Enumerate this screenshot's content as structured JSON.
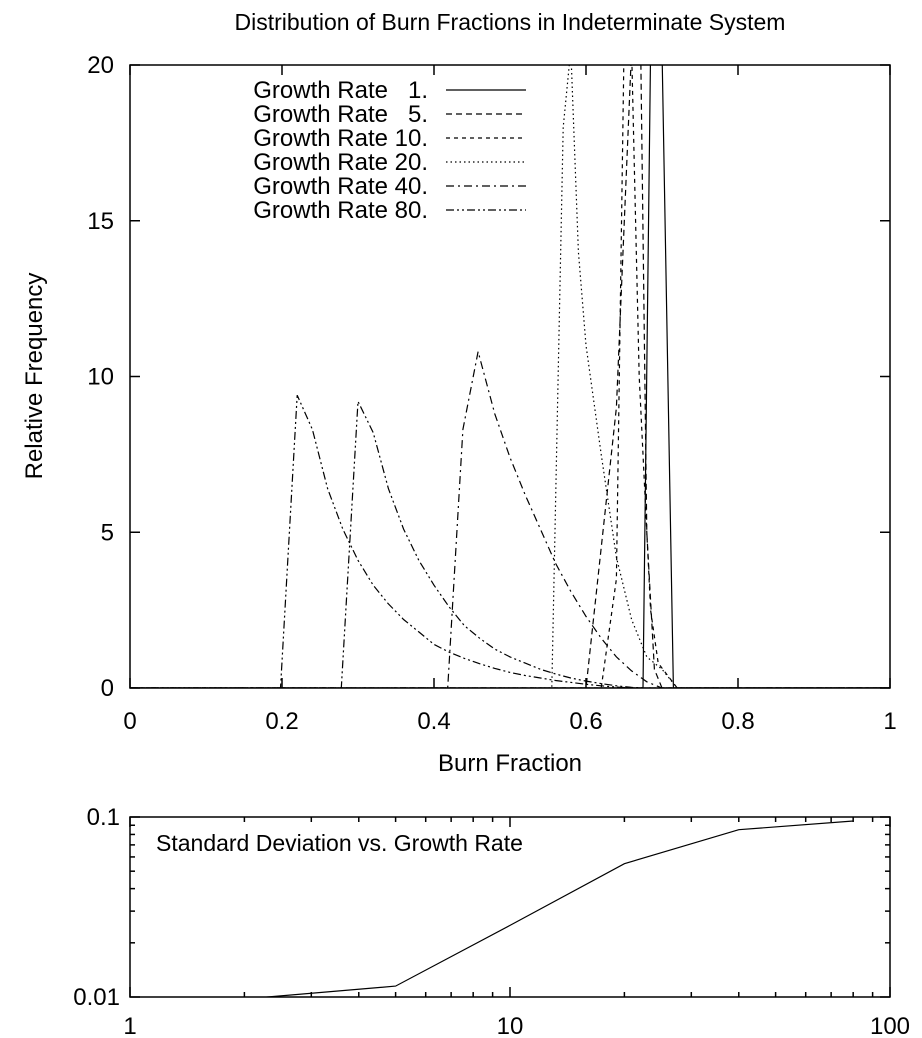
{
  "chart_data": [
    {
      "type": "line",
      "title": "Distribution of Burn Fractions in Indeterminate System",
      "xlabel": "Burn Fraction",
      "ylabel": "Relative Frequency",
      "xlim": [
        0,
        1
      ],
      "ylim": [
        0,
        20
      ],
      "x_ticks": [
        "0",
        "0.2",
        "0.4",
        "0.6",
        "0.8",
        "1"
      ],
      "y_ticks": [
        "0",
        "5",
        "10",
        "15",
        "20"
      ],
      "grid": false,
      "legend_position": "top-left",
      "series": [
        {
          "name": "Growth Rate   1.",
          "dash": "solid",
          "points": [
            [
              0,
              0
            ],
            [
              0.675,
              0
            ],
            [
              0.685,
              20.5
            ],
            [
              0.7,
              20.5
            ],
            [
              0.715,
              0
            ],
            [
              1,
              0
            ]
          ]
        },
        {
          "name": "Growth Rate   5.",
          "dash": "dashed",
          "points": [
            [
              0,
              0
            ],
            [
              0.6,
              0
            ],
            [
              0.64,
              9.0
            ],
            [
              0.66,
              20.5
            ],
            [
              0.672,
              20.5
            ],
            [
              0.68,
              5.0
            ],
            [
              0.69,
              0.6
            ],
            [
              0.7,
              0
            ],
            [
              1,
              0
            ]
          ]
        },
        {
          "name": "Growth Rate 10.",
          "dash": "short-dashed",
          "points": [
            [
              0,
              0
            ],
            [
              0.62,
              0
            ],
            [
              0.64,
              3.5
            ],
            [
              0.65,
              20.5
            ],
            [
              0.66,
              20.5
            ],
            [
              0.67,
              10.0
            ],
            [
              0.685,
              2.5
            ],
            [
              0.695,
              0.8
            ],
            [
              0.72,
              0
            ],
            [
              1,
              0
            ]
          ]
        },
        {
          "name": "Growth Rate 20.",
          "dash": "dotted",
          "points": [
            [
              0,
              0
            ],
            [
              0.555,
              0
            ],
            [
              0.57,
              18.0
            ],
            [
              0.58,
              20.5
            ],
            [
              0.59,
              14.0
            ],
            [
              0.6,
              11.0
            ],
            [
              0.62,
              7.5
            ],
            [
              0.64,
              4.2
            ],
            [
              0.66,
              2.2
            ],
            [
              0.68,
              1.0
            ],
            [
              0.7,
              0.6
            ],
            [
              0.72,
              0
            ],
            [
              1,
              0
            ]
          ]
        },
        {
          "name": "Growth Rate 40.",
          "dash": "dash-dot",
          "points": [
            [
              0,
              0
            ],
            [
              0.418,
              0
            ],
            [
              0.438,
              8.3
            ],
            [
              0.458,
              10.8
            ],
            [
              0.48,
              8.8
            ],
            [
              0.5,
              7.4
            ],
            [
              0.52,
              6.2
            ],
            [
              0.54,
              5.1
            ],
            [
              0.56,
              4.0
            ],
            [
              0.58,
              3.1
            ],
            [
              0.6,
              2.3
            ],
            [
              0.62,
              1.6
            ],
            [
              0.64,
              1.0
            ],
            [
              0.66,
              0.55
            ],
            [
              0.68,
              0.2
            ],
            [
              0.7,
              0
            ],
            [
              1,
              0
            ]
          ]
        },
        {
          "name": "Growth Rate 80.",
          "dash": "dash-dot-dot",
          "points": [
            [
              0,
              0
            ],
            [
              0.278,
              0
            ],
            [
              0.3,
              9.2
            ],
            [
              0.32,
              8.2
            ],
            [
              0.34,
              6.4
            ],
            [
              0.36,
              5.1
            ],
            [
              0.38,
              4.1
            ],
            [
              0.4,
              3.3
            ],
            [
              0.42,
              2.6
            ],
            [
              0.44,
              2.0
            ],
            [
              0.46,
              1.6
            ],
            [
              0.48,
              1.25
            ],
            [
              0.5,
              1.0
            ],
            [
              0.52,
              0.8
            ],
            [
              0.54,
              0.6
            ],
            [
              0.56,
              0.45
            ],
            [
              0.58,
              0.32
            ],
            [
              0.6,
              0.22
            ],
            [
              0.62,
              0.14
            ],
            [
              0.64,
              0.07
            ],
            [
              0.66,
              0.02
            ],
            [
              0.68,
              0
            ],
            [
              1,
              0
            ]
          ]
        },
        {
          "name": "",
          "dash": "dash-dot-dot",
          "points": [
            [
              0,
              0
            ],
            [
              0.198,
              0
            ],
            [
              0.22,
              9.4
            ],
            [
              0.24,
              8.3
            ],
            [
              0.26,
              6.4
            ],
            [
              0.28,
              5.1
            ],
            [
              0.3,
              4.1
            ],
            [
              0.32,
              3.3
            ],
            [
              0.34,
              2.7
            ],
            [
              0.36,
              2.2
            ],
            [
              0.38,
              1.8
            ],
            [
              0.4,
              1.4
            ],
            [
              0.42,
              1.15
            ],
            [
              0.44,
              0.95
            ],
            [
              0.46,
              0.78
            ],
            [
              0.48,
              0.63
            ],
            [
              0.5,
              0.5
            ],
            [
              0.52,
              0.4
            ],
            [
              0.54,
              0.32
            ],
            [
              0.56,
              0.24
            ],
            [
              0.58,
              0.18
            ],
            [
              0.6,
              0.12
            ],
            [
              0.62,
              0.07
            ],
            [
              0.64,
              0.03
            ],
            [
              0.66,
              0
            ],
            [
              1,
              0
            ]
          ]
        }
      ]
    },
    {
      "type": "line",
      "title": "Standard Deviation vs. Growth Rate",
      "xscale": "log",
      "yscale": "log",
      "xlim": [
        1,
        100
      ],
      "ylim": [
        0.01,
        0.1
      ],
      "x_ticks": [
        "1",
        "10",
        "100"
      ],
      "y_ticks": [
        "0.01",
        "0.1"
      ],
      "series": [
        {
          "name": "",
          "dash": "solid",
          "points": [
            [
              1,
              0.0085
            ],
            [
              2.3,
              0.01
            ],
            [
              5,
              0.0115
            ],
            [
              10,
              0.025
            ],
            [
              20,
              0.055
            ],
            [
              40,
              0.085
            ],
            [
              80,
              0.095
            ]
          ]
        }
      ]
    }
  ]
}
